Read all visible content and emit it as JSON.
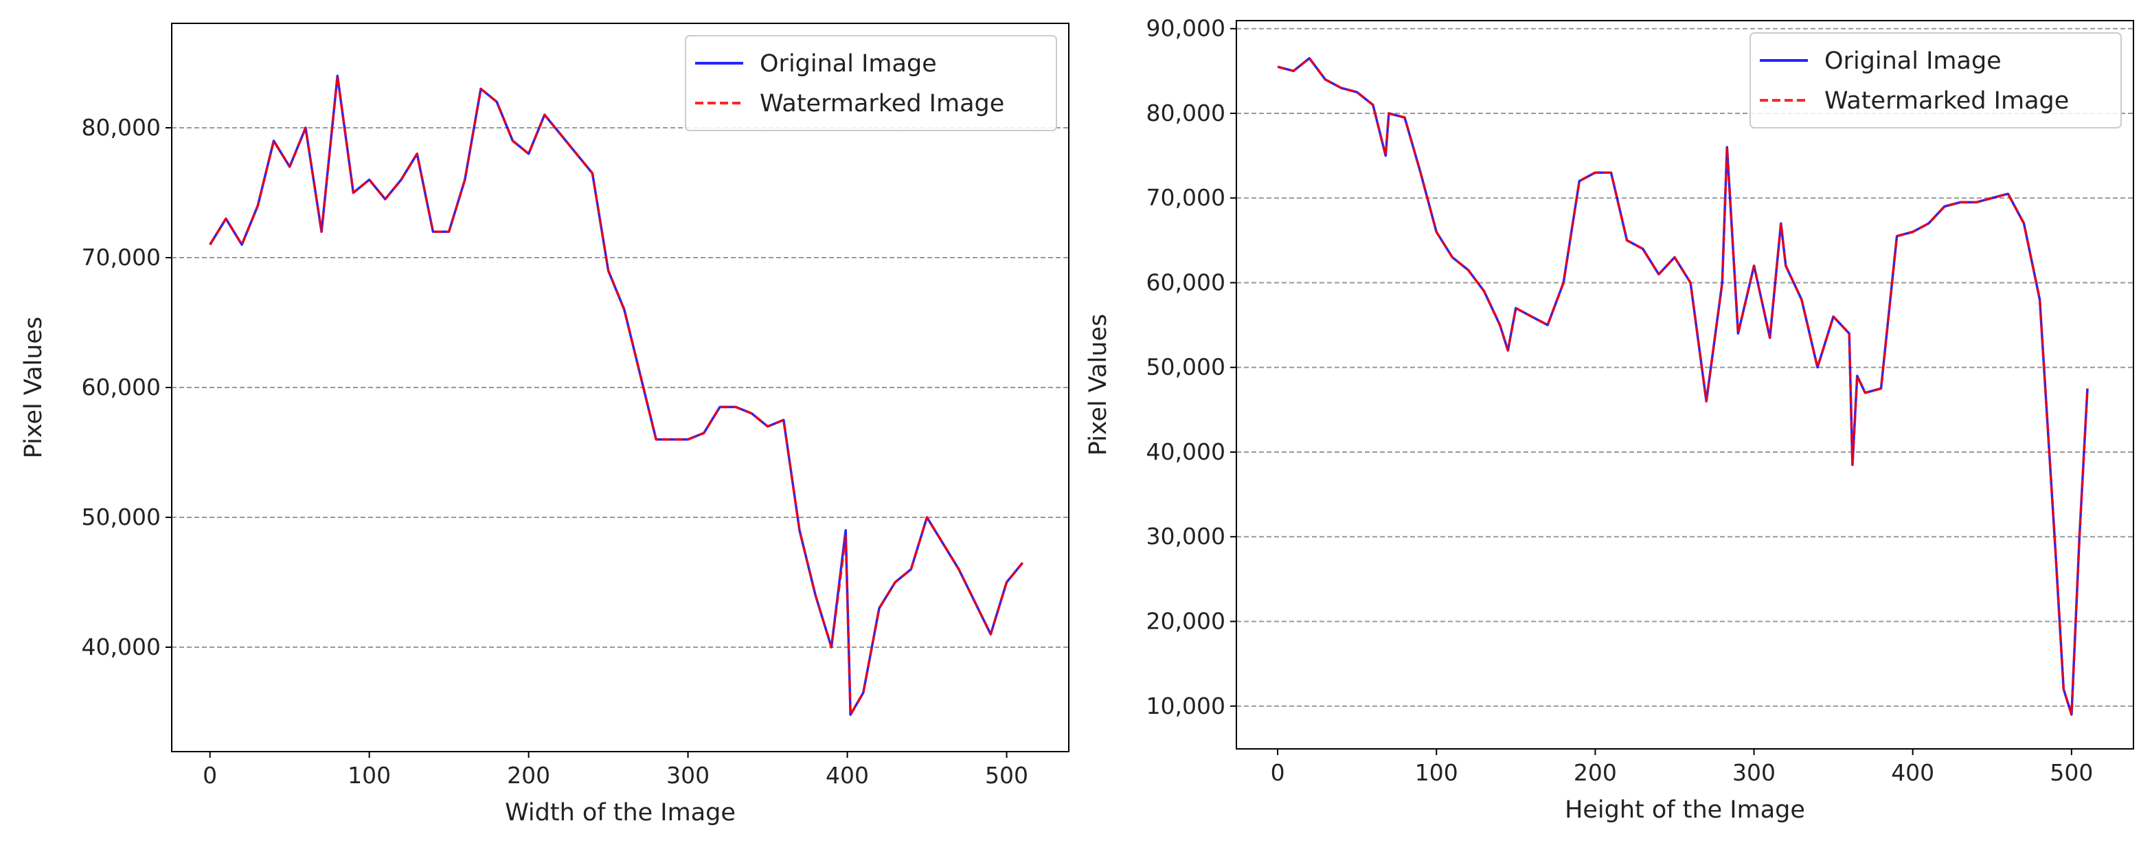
{
  "chart_data": [
    {
      "type": "line",
      "xlabel": "Width of the Image",
      "ylabel": "Pixel Values",
      "x": [
        0,
        10,
        20,
        30,
        40,
        50,
        60,
        70,
        80,
        90,
        100,
        110,
        120,
        130,
        140,
        150,
        160,
        170,
        180,
        190,
        200,
        210,
        220,
        230,
        240,
        250,
        260,
        270,
        280,
        290,
        300,
        310,
        320,
        330,
        340,
        350,
        360,
        370,
        380,
        390,
        399,
        402,
        410,
        420,
        430,
        440,
        450,
        460,
        470,
        480,
        490,
        500,
        510
      ],
      "series": [
        {
          "name": "Original Image",
          "color": "#0000ff",
          "dash": false,
          "values": [
            71000,
            73000,
            71000,
            74000,
            79000,
            77000,
            80000,
            72000,
            84000,
            75000,
            76000,
            74500,
            76000,
            78000,
            72000,
            72000,
            76000,
            83000,
            82000,
            79000,
            78000,
            81000,
            79500,
            78000,
            76500,
            69000,
            66000,
            61000,
            56000,
            56000,
            56000,
            56500,
            58500,
            58500,
            58000,
            57000,
            57500,
            49000,
            44000,
            40000,
            49000,
            34800,
            36500,
            43000,
            45000,
            46000,
            50000,
            48000,
            46000,
            43500,
            41000,
            45000,
            46500
          ]
        },
        {
          "name": "Watermarked Image",
          "color": "#ff0000",
          "dash": true,
          "values": [
            71000,
            73000,
            71000,
            74000,
            79000,
            77000,
            80000,
            72000,
            84000,
            75000,
            76000,
            74500,
            76000,
            78000,
            72000,
            72000,
            76000,
            83000,
            82000,
            79000,
            78000,
            81000,
            79500,
            78000,
            76500,
            69000,
            66000,
            61000,
            56000,
            56000,
            56000,
            56500,
            58500,
            58500,
            58000,
            57000,
            57500,
            49000,
            44000,
            40000,
            48500,
            34800,
            36500,
            43000,
            45000,
            46000,
            50000,
            48000,
            46000,
            43500,
            41000,
            45000,
            46500
          ]
        }
      ],
      "xlim": [
        -24,
        539
      ],
      "ylim": [
        31958,
        88042
      ],
      "xticks": [
        0,
        100,
        200,
        300,
        400,
        500
      ],
      "yticks": [
        {
          "value": 40000,
          "label": "40,000"
        },
        {
          "value": 50000,
          "label": "50,000"
        },
        {
          "value": 60000,
          "label": "60,000"
        },
        {
          "value": 70000,
          "label": "70,000"
        },
        {
          "value": 80000,
          "label": "80,000"
        }
      ],
      "grid": "y",
      "legend": "upper right"
    },
    {
      "type": "line",
      "xlabel": "Height of the Image",
      "ylabel": "Pixel Values",
      "x": [
        0,
        10,
        20,
        30,
        40,
        50,
        60,
        68,
        70,
        80,
        90,
        100,
        110,
        120,
        130,
        140,
        145,
        150,
        160,
        170,
        180,
        190,
        200,
        210,
        220,
        230,
        240,
        250,
        260,
        270,
        280,
        283,
        290,
        300,
        310,
        317,
        320,
        330,
        340,
        350,
        360,
        362,
        365,
        370,
        380,
        390,
        400,
        410,
        420,
        430,
        440,
        450,
        460,
        470,
        480,
        490,
        495,
        500,
        505,
        510
      ],
      "series": [
        {
          "name": "Original Image",
          "color": "#0000ff",
          "dash": false,
          "values": [
            85500,
            85000,
            86500,
            84000,
            83000,
            82500,
            81000,
            75000,
            80000,
            79500,
            73000,
            66000,
            63000,
            61500,
            59000,
            55000,
            52000,
            57000,
            56000,
            55000,
            60000,
            72000,
            73000,
            73000,
            65000,
            64000,
            61000,
            63000,
            60000,
            46000,
            60000,
            76000,
            54000,
            62000,
            53500,
            67000,
            62000,
            58000,
            50000,
            56000,
            54000,
            38500,
            49000,
            47000,
            47500,
            65500,
            66000,
            67000,
            69000,
            69500,
            69500,
            70000,
            70500,
            67000,
            58000,
            28000,
            12000,
            9000,
            30000,
            47500
          ]
        },
        {
          "name": "Watermarked Image",
          "color": "#ff0000",
          "dash": true,
          "values": [
            85500,
            85000,
            86500,
            84000,
            83000,
            82500,
            81000,
            75000,
            80000,
            79500,
            73000,
            66000,
            63000,
            61500,
            59000,
            55000,
            52000,
            57000,
            56000,
            55000,
            60000,
            72000,
            73000,
            73000,
            65000,
            64000,
            61000,
            63000,
            60000,
            46000,
            60000,
            76000,
            54000,
            62000,
            53500,
            67000,
            62000,
            58000,
            50000,
            56000,
            54000,
            38500,
            49000,
            47000,
            47500,
            65500,
            66000,
            67000,
            69000,
            69500,
            69500,
            70000,
            70500,
            67000,
            58000,
            28000,
            12000,
            9000,
            30000,
            47500
          ]
        }
      ],
      "xlim": [
        -26,
        539
      ],
      "ylim": [
        4950,
        90950
      ],
      "xticks": [
        0,
        100,
        200,
        300,
        400,
        500
      ],
      "yticks": [
        {
          "value": 10000,
          "label": "10,000"
        },
        {
          "value": 20000,
          "label": "20,000"
        },
        {
          "value": 30000,
          "label": "30,000"
        },
        {
          "value": 40000,
          "label": "40,000"
        },
        {
          "value": 50000,
          "label": "50,000"
        },
        {
          "value": 60000,
          "label": "60,000"
        },
        {
          "value": 70000,
          "label": "70,000"
        },
        {
          "value": 80000,
          "label": "80,000"
        },
        {
          "value": 90000,
          "label": "90,000"
        }
      ],
      "grid": "y",
      "legend": "upper right"
    }
  ]
}
